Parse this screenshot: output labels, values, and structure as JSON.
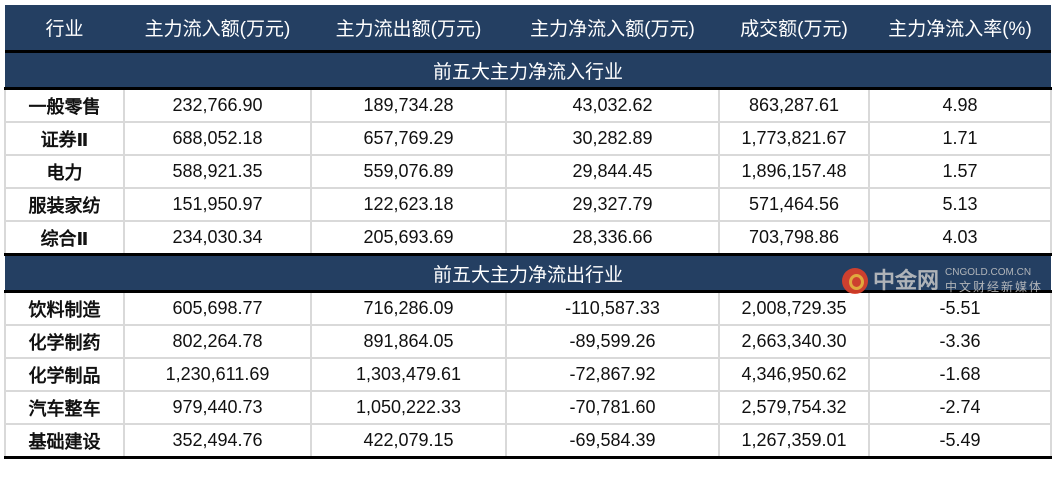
{
  "headers": [
    "行业",
    "主力流入额(万元)",
    "主力流出额(万元)",
    "主力净流入额(万元)",
    "成交额(万元)",
    "主力净流入率(%)"
  ],
  "sections": [
    {
      "title": "前五大主力净流入行业",
      "rows": [
        [
          "一般零售",
          "232,766.90",
          "189,734.28",
          "43,032.62",
          "863,287.61",
          "4.98"
        ],
        [
          "证券Ⅱ",
          "688,052.18",
          "657,769.29",
          "30,282.89",
          "1,773,821.67",
          "1.71"
        ],
        [
          "电力",
          "588,921.35",
          "559,076.89",
          "29,844.45",
          "1,896,157.48",
          "1.57"
        ],
        [
          "服装家纺",
          "151,950.97",
          "122,623.18",
          "29,327.79",
          "571,464.56",
          "5.13"
        ],
        [
          "综合Ⅱ",
          "234,030.34",
          "205,693.69",
          "28,336.66",
          "703,798.86",
          "4.03"
        ]
      ]
    },
    {
      "title": "前五大主力净流出行业",
      "rows": [
        [
          "饮料制造",
          "605,698.77",
          "716,286.09",
          "-110,587.33",
          "2,008,729.35",
          "-5.51"
        ],
        [
          "化学制药",
          "802,264.78",
          "891,864.05",
          "-89,599.26",
          "2,663,340.30",
          "-3.36"
        ],
        [
          "化学制品",
          "1,230,611.69",
          "1,303,479.61",
          "-72,867.92",
          "4,346,950.62",
          "-1.68"
        ],
        [
          "汽车整车",
          "979,440.73",
          "1,050,222.33",
          "-70,781.60",
          "2,579,754.32",
          "-2.74"
        ],
        [
          "基础建设",
          "352,494.76",
          "422,079.15",
          "-69,584.39",
          "1,267,359.01",
          "-5.49"
        ]
      ]
    }
  ],
  "watermark": {
    "name": "中金网",
    "url": "CNGOLD.COM.CN",
    "tagline": "中文财经新媒体"
  },
  "colors": {
    "header_bg": "#243f62",
    "header_text": "#ffffff"
  }
}
